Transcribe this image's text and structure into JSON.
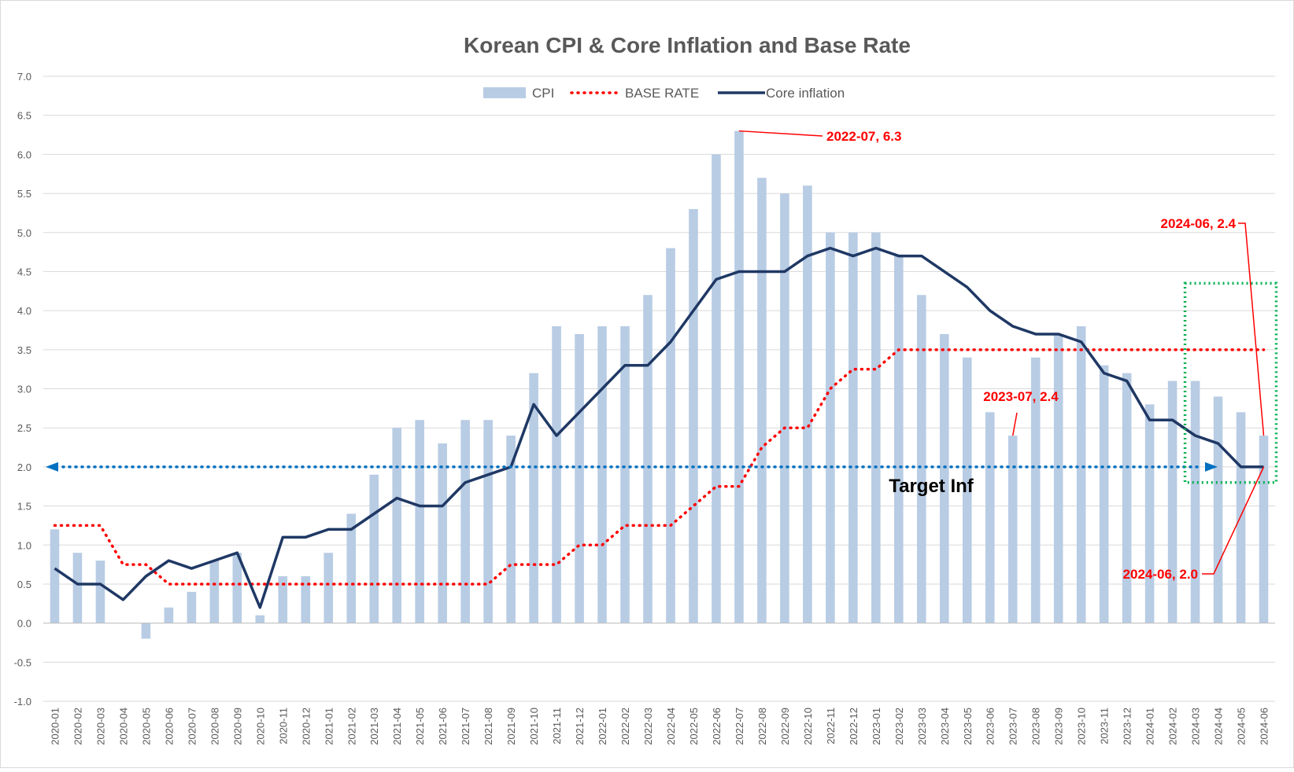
{
  "chart_data": {
    "type": "bar",
    "title": "Korean CPI & Core Inflation and Base Rate",
    "categories": [
      "2020-01",
      "2020-02",
      "2020-03",
      "2020-04",
      "2020-05",
      "2020-06",
      "2020-07",
      "2020-08",
      "2020-09",
      "2020-10",
      "2020-11",
      "2020-12",
      "2021-01",
      "2021-02",
      "2021-03",
      "2021-04",
      "2021-05",
      "2021-06",
      "2021-07",
      "2021-08",
      "2021-09",
      "2021-10",
      "2021-11",
      "2021-12",
      "2022-01",
      "2022-02",
      "2022-03",
      "2022-04",
      "2022-05",
      "2022-06",
      "2022-07",
      "2022-08",
      "2022-09",
      "2022-10",
      "2022-11",
      "2022-12",
      "2023-01",
      "2023-02",
      "2023-03",
      "2023-04",
      "2023-05",
      "2023-06",
      "2023-07",
      "2023-08",
      "2023-09",
      "2023-10",
      "2023-11",
      "2023-12",
      "2024-01",
      "2024-02",
      "2024-03",
      "2024-04",
      "2024-05",
      "2024-06"
    ],
    "series": [
      {
        "name": "CPI",
        "kind": "bar",
        "color": "#b8cce4",
        "values": [
          1.2,
          0.9,
          0.8,
          0.0,
          -0.2,
          0.2,
          0.4,
          0.8,
          0.9,
          0.1,
          0.6,
          0.6,
          0.9,
          1.4,
          1.9,
          2.5,
          2.6,
          2.3,
          2.6,
          2.6,
          2.4,
          3.2,
          3.8,
          3.7,
          3.8,
          3.8,
          4.2,
          4.8,
          5.3,
          6.0,
          6.3,
          5.7,
          5.5,
          5.6,
          5.0,
          5.0,
          5.0,
          4.7,
          4.2,
          3.7,
          3.4,
          2.7,
          2.4,
          3.4,
          3.7,
          3.8,
          3.3,
          3.2,
          2.8,
          3.1,
          3.1,
          2.9,
          2.7,
          2.4
        ]
      },
      {
        "name": "BASE RATE",
        "kind": "dotted-line",
        "color": "#ff0000",
        "values": [
          1.25,
          1.25,
          1.25,
          0.75,
          0.75,
          0.5,
          0.5,
          0.5,
          0.5,
          0.5,
          0.5,
          0.5,
          0.5,
          0.5,
          0.5,
          0.5,
          0.5,
          0.5,
          0.5,
          0.5,
          0.75,
          0.75,
          0.75,
          1.0,
          1.0,
          1.25,
          1.25,
          1.25,
          1.5,
          1.75,
          1.75,
          2.25,
          2.5,
          2.5,
          3.0,
          3.25,
          3.25,
          3.5,
          3.5,
          3.5,
          3.5,
          3.5,
          3.5,
          3.5,
          3.5,
          3.5,
          3.5,
          3.5,
          3.5,
          3.5,
          3.5,
          3.5,
          3.5,
          3.5
        ]
      },
      {
        "name": "Core inflation",
        "kind": "line",
        "color": "#1f3864",
        "values": [
          0.7,
          0.5,
          0.5,
          0.3,
          0.6,
          0.8,
          0.7,
          0.8,
          0.9,
          0.2,
          1.1,
          1.1,
          1.2,
          1.2,
          1.4,
          1.6,
          1.5,
          1.5,
          1.8,
          1.9,
          2.0,
          2.8,
          2.4,
          2.7,
          3.0,
          3.3,
          3.3,
          3.6,
          4.0,
          4.4,
          4.5,
          4.5,
          4.5,
          4.7,
          4.8,
          4.7,
          4.8,
          4.7,
          4.7,
          4.5,
          4.3,
          4.0,
          3.8,
          3.7,
          3.7,
          3.6,
          3.2,
          3.1,
          2.6,
          2.6,
          2.4,
          2.3,
          2.0,
          2.0
        ]
      }
    ],
    "ylim": [
      -1.0,
      7.0
    ],
    "ytick_labels": [
      "-1.0",
      "-0.5",
      "0.0",
      "0.5",
      "1.0",
      "1.5",
      "2.0",
      "2.5",
      "3.0",
      "3.5",
      "4.0",
      "4.5",
      "5.0",
      "5.5",
      "6.0",
      "6.5",
      "7.0"
    ],
    "grid": true,
    "legend_position": "top-center",
    "target": {
      "value": 2.0,
      "label": "Target Inf",
      "color": "#0070c0"
    },
    "annotations": [
      {
        "text": "2022-07, 6.3",
        "category": "2022-07",
        "value": 6.3
      },
      {
        "text": "2023-07, 2.4",
        "category": "2023-07",
        "value": 2.4
      },
      {
        "text": "2024-06, 2.4",
        "category": "2024-06",
        "value": 2.4
      },
      {
        "text": "2024-06, 2.0",
        "category": "2024-06",
        "value": 2.0
      }
    ],
    "highlight_box": {
      "from": "2024-03",
      "to": "2024-06",
      "ymin": 1.8,
      "ymax": 4.35,
      "color": "#00b050"
    }
  }
}
